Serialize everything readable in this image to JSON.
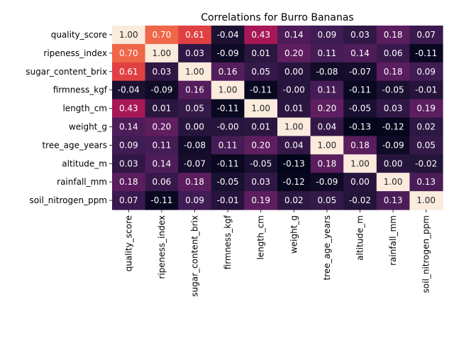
{
  "chart_data": {
    "type": "heatmap",
    "title": "Correlations for Burro Bananas",
    "row_labels": [
      "quality_score",
      "ripeness_index",
      "sugar_content_brix",
      "firmness_kgf",
      "length_cm",
      "weight_g",
      "tree_age_years",
      "altitude_m",
      "rainfall_mm",
      "soil_nitrogen_ppm"
    ],
    "col_labels": [
      "quality_score",
      "ripeness_index",
      "sugar_content_brix",
      "firmness_kgf",
      "length_cm",
      "weight_g",
      "tree_age_years",
      "altitude_m",
      "rainfall_mm",
      "soil_nitrogen_ppm"
    ],
    "values": [
      [
        1.0,
        0.7,
        0.61,
        -0.04,
        0.43,
        0.14,
        0.09,
        0.03,
        0.18,
        0.07
      ],
      [
        0.7,
        1.0,
        0.03,
        -0.09,
        0.01,
        0.2,
        0.11,
        0.14,
        0.06,
        -0.11
      ],
      [
        0.61,
        0.03,
        1.0,
        0.16,
        0.05,
        0.0,
        -0.08,
        -0.07,
        0.18,
        0.09
      ],
      [
        -0.04,
        -0.09,
        0.16,
        1.0,
        -0.11,
        -0.0,
        0.11,
        -0.11,
        -0.05,
        -0.01
      ],
      [
        0.43,
        0.01,
        0.05,
        -0.11,
        1.0,
        0.01,
        0.2,
        -0.05,
        0.03,
        0.19
      ],
      [
        0.14,
        0.2,
        0.0,
        -0.0,
        0.01,
        1.0,
        0.04,
        -0.13,
        -0.12,
        0.02
      ],
      [
        0.09,
        0.11,
        -0.08,
        0.11,
        0.2,
        0.04,
        1.0,
        0.18,
        -0.09,
        0.05
      ],
      [
        0.03,
        0.14,
        -0.07,
        -0.11,
        -0.05,
        -0.13,
        0.18,
        1.0,
        0.0,
        -0.02
      ],
      [
        0.18,
        0.06,
        0.18,
        -0.05,
        0.03,
        -0.12,
        -0.09,
        0.0,
        1.0,
        0.13
      ],
      [
        0.07,
        -0.11,
        0.09,
        -0.01,
        0.19,
        0.02,
        0.05,
        -0.02,
        0.13,
        1.0
      ]
    ],
    "value_range": [
      -0.13,
      1.0
    ],
    "value_format": "2 decimals",
    "colormap": "rocket",
    "colorbar": false,
    "grid": false
  }
}
